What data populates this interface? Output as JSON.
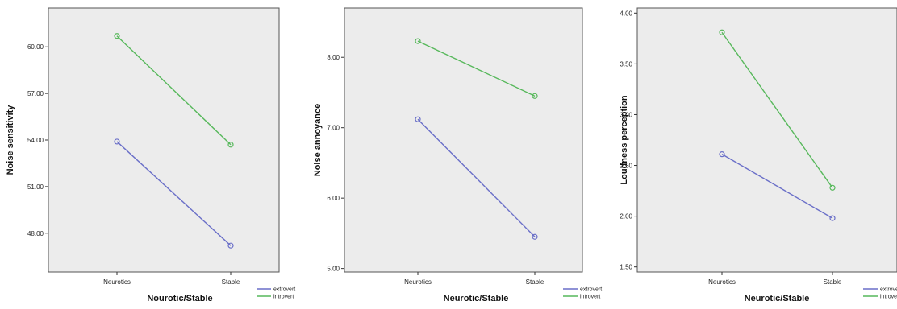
{
  "chart_data": [
    {
      "type": "line",
      "title": "",
      "xlabel": "Nourotic/Stable",
      "ylabel": "Noise sensitivity",
      "categories": [
        "Neurotics",
        "Stable"
      ],
      "ylim": [
        45.5,
        62.5
      ],
      "yticks": [
        "48.00",
        "51.00",
        "54.00",
        "57.00",
        "60.00"
      ],
      "series": [
        {
          "name": "extrovert",
          "values": [
            53.9,
            47.2
          ]
        },
        {
          "name": "introvert",
          "values": [
            60.7,
            53.7
          ]
        }
      ],
      "legend": "bottom-right",
      "grid": false
    },
    {
      "type": "line",
      "title": "",
      "xlabel": "Neurotic/Stable",
      "ylabel": "Noise annoyance",
      "categories": [
        "Neurotics",
        "Stable"
      ],
      "ylim": [
        4.95,
        8.7
      ],
      "yticks": [
        "5.00",
        "6.00",
        "7.00",
        "8.00"
      ],
      "series": [
        {
          "name": "extrovert",
          "values": [
            7.12,
            5.45
          ]
        },
        {
          "name": "introvert",
          "values": [
            8.23,
            7.45
          ]
        }
      ],
      "legend": "bottom-right",
      "grid": false
    },
    {
      "type": "line",
      "title": "",
      "xlabel": "Neurotic/Stable",
      "ylabel": "Loudness perception",
      "categories": [
        "Neurotics",
        "Stable"
      ],
      "ylim": [
        1.45,
        4.05
      ],
      "yticks": [
        "1.50",
        "2.00",
        "2.50",
        "3.00",
        "3.50",
        "4.00"
      ],
      "series": [
        {
          "name": "extrovert",
          "values": [
            2.61,
            1.98
          ]
        },
        {
          "name": "introvert",
          "values": [
            3.81,
            2.28
          ]
        }
      ],
      "legend": "bottom-right",
      "grid": false
    }
  ],
  "colors": {
    "extrovert": "#6a6fc8",
    "introvert": "#57b85b",
    "plot_background": "#ececec",
    "frame": "#555555"
  }
}
